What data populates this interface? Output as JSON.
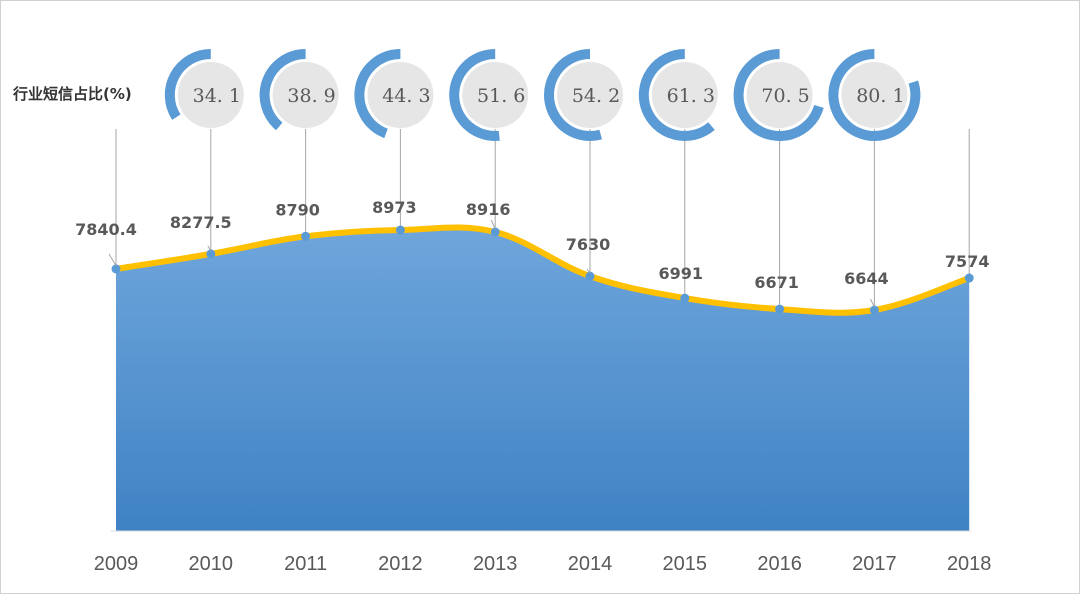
{
  "chart_data": {
    "type": "area",
    "title": "",
    "x": [
      "2009",
      "2010",
      "2011",
      "2012",
      "2013",
      "2014",
      "2015",
      "2016",
      "2017",
      "2018"
    ],
    "series": [
      {
        "values": [
          7840.4,
          8277.5,
          8790,
          8973,
          8916,
          7630,
          6991,
          6671,
          6644,
          7574
        ]
      }
    ],
    "value_labels": [
      "7840.4",
      "8277.5",
      "8790",
      "8973",
      "8916",
      "7630",
      "6991",
      "6671",
      "6644",
      "7574"
    ],
    "share_label": "行业短信占比(%)",
    "share": {
      "years": [
        "2010",
        "2011",
        "2012",
        "2013",
        "2014",
        "2015",
        "2016",
        "2017"
      ],
      "values": [
        34.1,
        38.9,
        44.3,
        51.6,
        54.2,
        61.3,
        70.5,
        80.1
      ],
      "labels": [
        "34. 1",
        "38. 9",
        "44. 3",
        "51. 6",
        "54. 2",
        "61. 3",
        "70. 5",
        "80. 1"
      ]
    },
    "colors": {
      "area_top": "#6fa6dc",
      "area_bottom": "#3f82c4",
      "line": "#ffc000",
      "marker": "#5b9bd5",
      "ring": "#5b9bd5",
      "ring_inner": "#e6e6e6",
      "leader": "#a6a6a6"
    }
  }
}
